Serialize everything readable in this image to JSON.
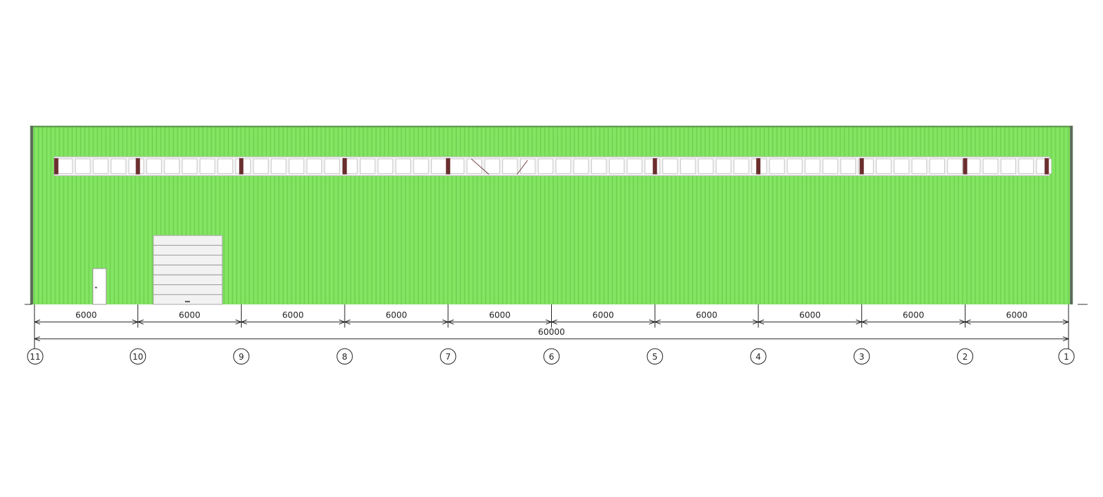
{
  "dimensions": {
    "spans": [
      "6000",
      "6000",
      "6000",
      "6000",
      "6000",
      "6000",
      "6000",
      "6000",
      "6000",
      "6000"
    ],
    "total": "60000"
  },
  "axes": [
    "11",
    "10",
    "9",
    "8",
    "7",
    "6",
    "5",
    "4",
    "3",
    "2",
    "1"
  ]
}
